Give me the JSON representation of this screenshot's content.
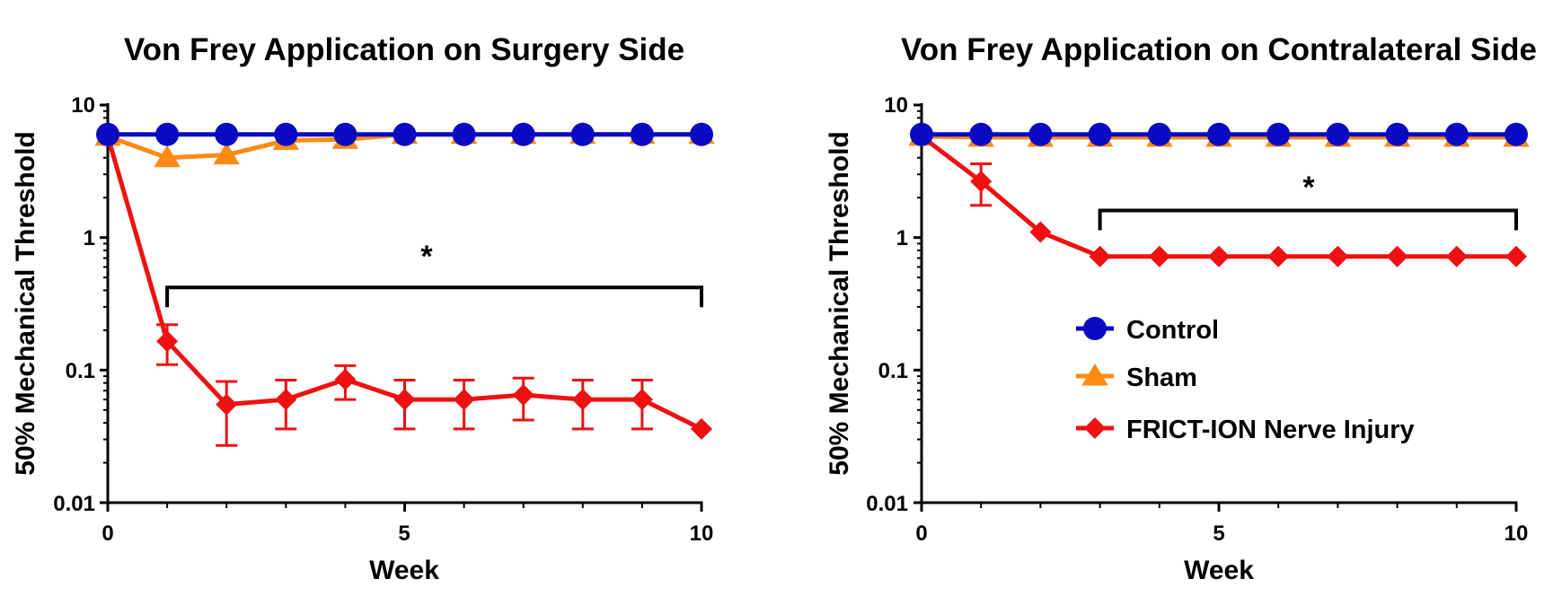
{
  "chart_data": [
    {
      "type": "line",
      "title": "Von Frey Application on Surgery Side",
      "xlabel": "Week",
      "ylabel": "50% Mechanical  Threshold",
      "xlim": [
        0,
        10
      ],
      "ylim": [
        0.01,
        10
      ],
      "yscale": "log",
      "xticks": [
        "0",
        "5",
        "10"
      ],
      "yticks": [
        "0.01",
        "0.1",
        "1",
        "10"
      ],
      "x": [
        0,
        1,
        2,
        3,
        4,
        5,
        6,
        7,
        8,
        9,
        10
      ],
      "series": [
        {
          "name": "Control",
          "color": "#0a0ac2",
          "marker": "circle",
          "values": [
            6,
            6,
            6,
            6,
            6,
            6,
            6,
            6,
            6,
            6,
            6
          ]
        },
        {
          "name": "Sham",
          "color": "#ff8a13",
          "marker": "triangle",
          "values": [
            5.8,
            4.0,
            4.2,
            5.4,
            5.5,
            6,
            6,
            6,
            6,
            6,
            6
          ]
        },
        {
          "name": "FRICT-ION Nerve Injury",
          "color": "#ee1111",
          "marker": "diamond",
          "values": [
            5.8,
            0.165,
            0.055,
            0.06,
            0.085,
            0.06,
            0.06,
            0.065,
            0.06,
            0.06,
            0.036
          ],
          "error_low": [
            null,
            0.11,
            0.027,
            0.036,
            0.06,
            0.036,
            0.036,
            0.042,
            0.036,
            0.036,
            null
          ],
          "error_high": [
            null,
            0.22,
            0.082,
            0.084,
            0.108,
            0.084,
            0.084,
            0.087,
            0.084,
            0.084,
            null
          ]
        }
      ],
      "significance": {
        "from_x": 1,
        "to_x": 10,
        "y": 0.42,
        "label": "*"
      },
      "legend": null
    },
    {
      "type": "line",
      "title": "Von Frey Application on Contralateral Side",
      "xlabel": "Week",
      "ylabel": "50% Mechanical  Threshold",
      "xlim": [
        0,
        10
      ],
      "ylim": [
        0.01,
        10
      ],
      "yscale": "log",
      "xticks": [
        "0",
        "5",
        "10"
      ],
      "yticks": [
        "0.01",
        "0.1",
        "1",
        "10"
      ],
      "x": [
        0,
        1,
        2,
        3,
        4,
        5,
        6,
        7,
        8,
        9,
        10
      ],
      "series": [
        {
          "name": "Control",
          "color": "#0a0ac2",
          "marker": "circle",
          "values": [
            6,
            6,
            6,
            6,
            6,
            6,
            6,
            6,
            6,
            6,
            6
          ]
        },
        {
          "name": "Sham",
          "color": "#ff8a13",
          "marker": "triangle",
          "values": [
            5.8,
            5.7,
            5.7,
            5.7,
            5.7,
            5.7,
            5.7,
            5.7,
            5.7,
            5.7,
            5.7
          ]
        },
        {
          "name": "FRICT-ION Nerve Injury",
          "color": "#ee1111",
          "marker": "diamond",
          "values": [
            5.8,
            2.65,
            1.1,
            0.72,
            0.72,
            0.72,
            0.72,
            0.72,
            0.72,
            0.72,
            0.72
          ],
          "error_low": [
            null,
            1.75,
            null,
            null,
            null,
            null,
            null,
            null,
            null,
            null,
            null
          ],
          "error_high": [
            null,
            3.6,
            null,
            null,
            null,
            null,
            null,
            null,
            null,
            null,
            null
          ]
        }
      ],
      "significance": {
        "from_x": 3,
        "to_x": 10,
        "y": 1.6,
        "label": "*"
      },
      "legend": {
        "placement": "center-right",
        "entries": [
          "Control",
          "Sham",
          "FRICT-ION Nerve Injury"
        ]
      }
    }
  ]
}
